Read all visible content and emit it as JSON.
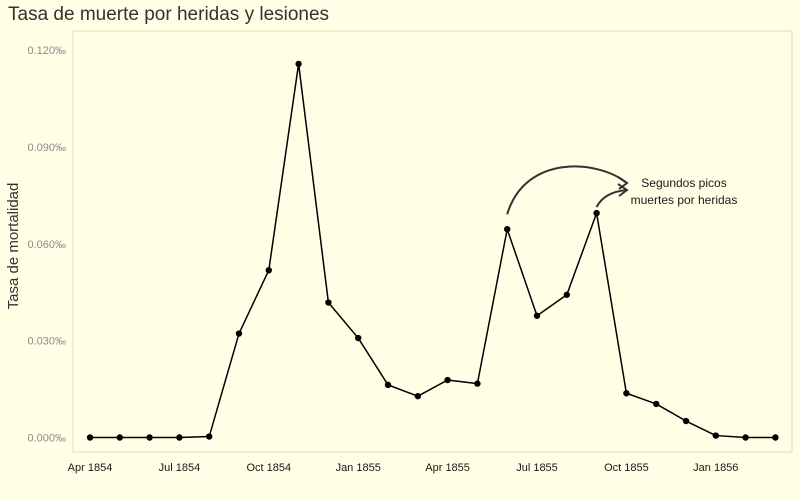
{
  "chart_data": {
    "type": "line",
    "title": "Tasa de muerte por heridas y lesiones",
    "xlabel": "",
    "ylabel": "Tasa de mortalidad",
    "x": [
      "1854-04",
      "1854-05",
      "1854-06",
      "1854-07",
      "1854-08",
      "1854-09",
      "1854-10",
      "1854-11",
      "1854-12",
      "1855-01",
      "1855-02",
      "1855-03",
      "1855-04",
      "1855-05",
      "1855-06",
      "1855-07",
      "1855-08",
      "1855-09",
      "1855-10",
      "1855-11",
      "1855-12",
      "1856-01",
      "1856-02",
      "1856-03"
    ],
    "values": [
      0.0,
      0.0,
      0.0,
      0.0,
      0.0003,
      0.0322,
      0.0518,
      0.1157,
      0.0418,
      0.0308,
      0.0163,
      0.0128,
      0.0178,
      0.0167,
      0.0645,
      0.0377,
      0.0442,
      0.0695,
      0.0137,
      0.0104,
      0.0051,
      0.0006,
      0.0,
      0.0
    ],
    "value_unit": "‰",
    "ylim": [
      -0.001,
      0.121
    ],
    "yticks": [
      {
        "value": 0.0,
        "label": "0.000‰"
      },
      {
        "value": 0.03,
        "label": "0.030‰"
      },
      {
        "value": 0.06,
        "label": "0.060‰"
      },
      {
        "value": 0.09,
        "label": "0.090‰"
      },
      {
        "value": 0.12,
        "label": "0.120‰"
      }
    ],
    "xticks": [
      {
        "index": 0,
        "label": "Apr 1854"
      },
      {
        "index": 3,
        "label": "Jul 1854"
      },
      {
        "index": 6,
        "label": "Oct 1854"
      },
      {
        "index": 9,
        "label": "Jan 1855"
      },
      {
        "index": 12,
        "label": "Apr 1855"
      },
      {
        "index": 15,
        "label": "Jul 1855"
      },
      {
        "index": 18,
        "label": "Oct 1855"
      },
      {
        "index": 21,
        "label": "Jan 1856"
      }
    ],
    "annotation": {
      "lines": [
        "Segundos picos",
        "muertes por heridas"
      ],
      "points_to": [
        14,
        17
      ]
    },
    "grid": false,
    "legend": "none"
  },
  "colors": {
    "background": "#ffffe6",
    "panel_border": "#e6ddb3",
    "series": "#000000",
    "arrow": "#333333"
  }
}
